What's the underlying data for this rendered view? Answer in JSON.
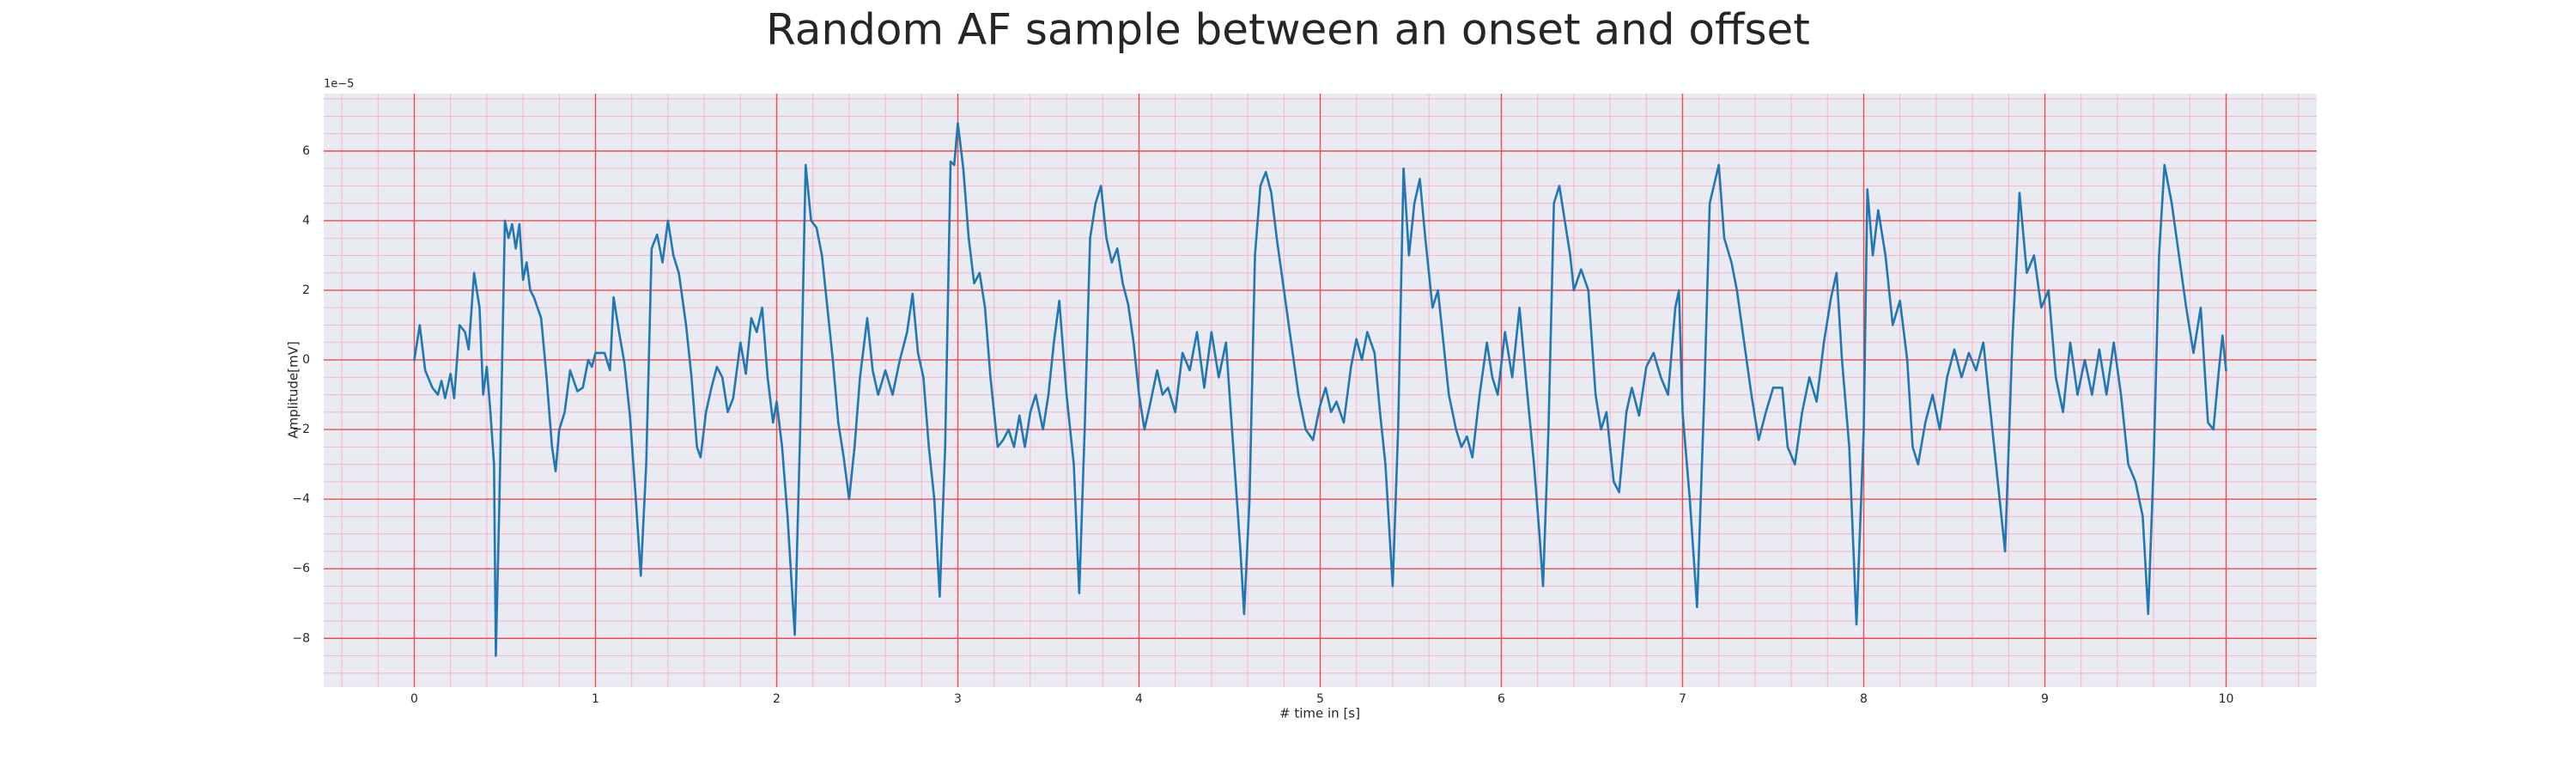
{
  "chart_data": {
    "type": "line",
    "title": "Random AF sample between an onset and offset",
    "xlabel": "# time in [s]",
    "ylabel": "Amplitude[mV]",
    "y_offset_label": "1e−5",
    "color": "#1f77b4",
    "grid": true,
    "minor_grid": true,
    "xlim": [
      -0.5,
      10.5
    ],
    "ylim": [
      -9.4,
      7.65
    ],
    "xticks": [
      0,
      1,
      2,
      3,
      4,
      5,
      6,
      7,
      8,
      9,
      10
    ],
    "yticks": [
      {
        "value": -8,
        "label": "−8"
      },
      {
        "value": -6,
        "label": "−6"
      },
      {
        "value": -4,
        "label": "−4"
      },
      {
        "value": -2,
        "label": "−2"
      },
      0,
      2,
      4,
      6
    ],
    "x": [
      0,
      0.03,
      0.06,
      0.1,
      0.13,
      0.15,
      0.17,
      0.2,
      0.22,
      0.25,
      0.28,
      0.3,
      0.33,
      0.36,
      0.38,
      0.4,
      0.42,
      0.44,
      0.45,
      0.47,
      0.5,
      0.52,
      0.54,
      0.56,
      0.58,
      0.6,
      0.62,
      0.64,
      0.66,
      0.7,
      0.73,
      0.76,
      0.78,
      0.8,
      0.83,
      0.86,
      0.9,
      0.93,
      0.96,
      0.98,
      1.0,
      1.05,
      1.08,
      1.1,
      1.13,
      1.16,
      1.19,
      1.22,
      1.25,
      1.28,
      1.31,
      1.34,
      1.37,
      1.4,
      1.43,
      1.46,
      1.5,
      1.53,
      1.56,
      1.58,
      1.61,
      1.64,
      1.67,
      1.7,
      1.73,
      1.76,
      1.8,
      1.83,
      1.86,
      1.89,
      1.92,
      1.95,
      1.98,
      2.0,
      2.03,
      2.06,
      2.1,
      2.13,
      2.16,
      2.19,
      2.22,
      2.25,
      2.28,
      2.31,
      2.34,
      2.37,
      2.4,
      2.43,
      2.46,
      2.5,
      2.53,
      2.56,
      2.6,
      2.64,
      2.68,
      2.72,
      2.75,
      2.78,
      2.81,
      2.84,
      2.87,
      2.9,
      2.93,
      2.96,
      2.98,
      3.0,
      3.03,
      3.06,
      3.09,
      3.12,
      3.15,
      3.18,
      3.22,
      3.25,
      3.28,
      3.31,
      3.34,
      3.37,
      3.4,
      3.43,
      3.47,
      3.5,
      3.53,
      3.56,
      3.6,
      3.64,
      3.67,
      3.7,
      3.73,
      3.76,
      3.79,
      3.82,
      3.85,
      3.88,
      3.91,
      3.94,
      3.97,
      4.0,
      4.03,
      4.06,
      4.1,
      4.13,
      4.16,
      4.2,
      4.24,
      4.28,
      4.32,
      4.36,
      4.4,
      4.44,
      4.48,
      4.52,
      4.56,
      4.58,
      4.61,
      4.64,
      4.67,
      4.7,
      4.73,
      4.76,
      4.8,
      4.84,
      4.88,
      4.92,
      4.96,
      5.0,
      5.03,
      5.06,
      5.09,
      5.13,
      5.17,
      5.2,
      5.23,
      5.26,
      5.3,
      5.33,
      5.36,
      5.4,
      5.43,
      5.46,
      5.49,
      5.52,
      5.55,
      5.58,
      5.62,
      5.65,
      5.68,
      5.71,
      5.75,
      5.78,
      5.81,
      5.84,
      5.88,
      5.92,
      5.95,
      5.98,
      6.02,
      6.06,
      6.1,
      6.14,
      6.18,
      6.21,
      6.23,
      6.26,
      6.29,
      6.32,
      6.35,
      6.38,
      6.4,
      6.44,
      6.48,
      6.52,
      6.55,
      6.58,
      6.62,
      6.65,
      6.69,
      6.72,
      6.76,
      6.8,
      6.84,
      6.88,
      6.92,
      6.96,
      6.98,
      7.0,
      7.04,
      7.08,
      7.12,
      7.15,
      7.2,
      7.23,
      7.27,
      7.3,
      7.34,
      7.38,
      7.42,
      7.46,
      7.5,
      7.55,
      7.58,
      7.62,
      7.66,
      7.7,
      7.74,
      7.78,
      7.82,
      7.85,
      7.88,
      7.92,
      7.96,
      8.0,
      8.02,
      8.05,
      8.08,
      8.12,
      8.16,
      8.2,
      8.24,
      8.27,
      8.3,
      8.34,
      8.38,
      8.42,
      8.46,
      8.5,
      8.54,
      8.58,
      8.62,
      8.66,
      8.7,
      8.74,
      8.78,
      8.82,
      8.86,
      8.9,
      8.94,
      8.98,
      9.02,
      9.06,
      9.1,
      9.14,
      9.18,
      9.22,
      9.26,
      9.3,
      9.34,
      9.38,
      9.42,
      9.46,
      9.5,
      9.54,
      9.57,
      9.6,
      9.63,
      9.66,
      9.7,
      9.74,
      9.78,
      9.82,
      9.86,
      9.9,
      9.93,
      9.96,
      9.98,
      10.0
    ],
    "values": [
      0,
      1.0,
      -0.3,
      -0.8,
      -1.0,
      -0.6,
      -1.1,
      -0.4,
      -1.1,
      1.0,
      0.8,
      0.3,
      2.5,
      1.5,
      -1.0,
      -0.2,
      -1.5,
      -3.0,
      -8.5,
      -4.0,
      4.0,
      3.5,
      3.9,
      3.2,
      3.9,
      2.3,
      2.8,
      2.0,
      1.8,
      1.2,
      -0.5,
      -2.5,
      -3.2,
      -2.0,
      -1.5,
      -0.3,
      -0.9,
      -0.8,
      0,
      -0.2,
      0.2,
      0.2,
      -0.3,
      1.8,
      0.8,
      -0.1,
      -1.6,
      -3.8,
      -6.2,
      -3.0,
      3.2,
      3.6,
      2.8,
      4.0,
      3.0,
      2.5,
      1.0,
      -0.5,
      -2.5,
      -2.8,
      -1.5,
      -0.8,
      -0.2,
      -0.5,
      -1.5,
      -1.1,
      0.5,
      -0.4,
      1.2,
      0.8,
      1.5,
      -0.5,
      -1.8,
      -1.2,
      -2.5,
      -4.5,
      -7.9,
      -2.0,
      5.6,
      4.0,
      3.8,
      3.0,
      1.5,
      0,
      -1.8,
      -2.8,
      -4.0,
      -2.5,
      -0.5,
      1.2,
      -0.3,
      -1.0,
      -0.3,
      -1.0,
      0,
      0.8,
      1.9,
      0.2,
      -0.5,
      -2.5,
      -4.0,
      -6.8,
      -2.5,
      5.7,
      5.6,
      6.8,
      5.5,
      3.5,
      2.2,
      2.5,
      1.5,
      -0.5,
      -2.5,
      -2.3,
      -2.0,
      -2.5,
      -1.6,
      -2.5,
      -1.5,
      -1.0,
      -2.0,
      -1.0,
      0.5,
      1.7,
      -1.0,
      -3.0,
      -6.7,
      -2.0,
      3.5,
      4.5,
      5.0,
      3.5,
      2.8,
      3.2,
      2.2,
      1.6,
      0.5,
      -1.0,
      -2.0,
      -1.3,
      -0.3,
      -1.0,
      -0.8,
      -1.5,
      0.2,
      -0.3,
      0.8,
      -0.8,
      0.8,
      -0.5,
      0.5,
      -2.5,
      -5.5,
      -7.3,
      -4.0,
      3.0,
      5.0,
      5.4,
      4.8,
      3.5,
      2.0,
      0.5,
      -1.0,
      -2.0,
      -2.3,
      -1.3,
      -0.8,
      -1.5,
      -1.2,
      -1.8,
      -0.2,
      0.6,
      0,
      0.8,
      0.2,
      -1.5,
      -3.0,
      -6.5,
      -2.0,
      5.5,
      3.0,
      4.5,
      5.2,
      3.5,
      1.5,
      2.0,
      0.5,
      -1.0,
      -2.0,
      -2.5,
      -2.2,
      -2.8,
      -1.0,
      0.5,
      -0.5,
      -1.0,
      0.8,
      -0.5,
      1.5,
      -0.8,
      -3.0,
      -5.0,
      -6.5,
      -2.0,
      4.5,
      5.0,
      4.0,
      3.0,
      2.0,
      2.6,
      2.0,
      -1.0,
      -2.0,
      -1.5,
      -3.5,
      -3.8,
      -1.5,
      -0.8,
      -1.6,
      -0.2,
      0.2,
      -0.5,
      -1.0,
      1.5,
      2.0,
      -1.5,
      -4.0,
      -7.1,
      -1.0,
      4.5,
      5.6,
      3.5,
      2.8,
      2.0,
      0.5,
      -1.0,
      -2.3,
      -1.5,
      -0.8,
      -0.8,
      -2.5,
      -3.0,
      -1.5,
      -0.5,
      -1.2,
      0.5,
      1.8,
      2.5,
      0,
      -2.5,
      -7.6,
      -2.0,
      4.9,
      3.0,
      4.3,
      3.0,
      1.0,
      1.7,
      0,
      -2.5,
      -3.0,
      -1.8,
      -1.0,
      -2.0,
      -0.5,
      0.3,
      -0.5,
      0.2,
      -0.3,
      0.5,
      -1.5,
      -3.5,
      -5.5,
      0.5,
      4.8,
      2.5,
      3.0,
      1.5,
      2.0,
      -0.5,
      -1.5,
      0.5,
      -1.0,
      0,
      -1.0,
      0.3,
      -1.0,
      0.5,
      -1.0,
      -3.0,
      -3.5,
      -4.5,
      -7.3,
      -3.0,
      3.0,
      5.6,
      4.5,
      3.0,
      1.5,
      0.2,
      1.5,
      -1.8,
      -2.0,
      -0.3,
      0.7,
      -0.3
    ]
  }
}
